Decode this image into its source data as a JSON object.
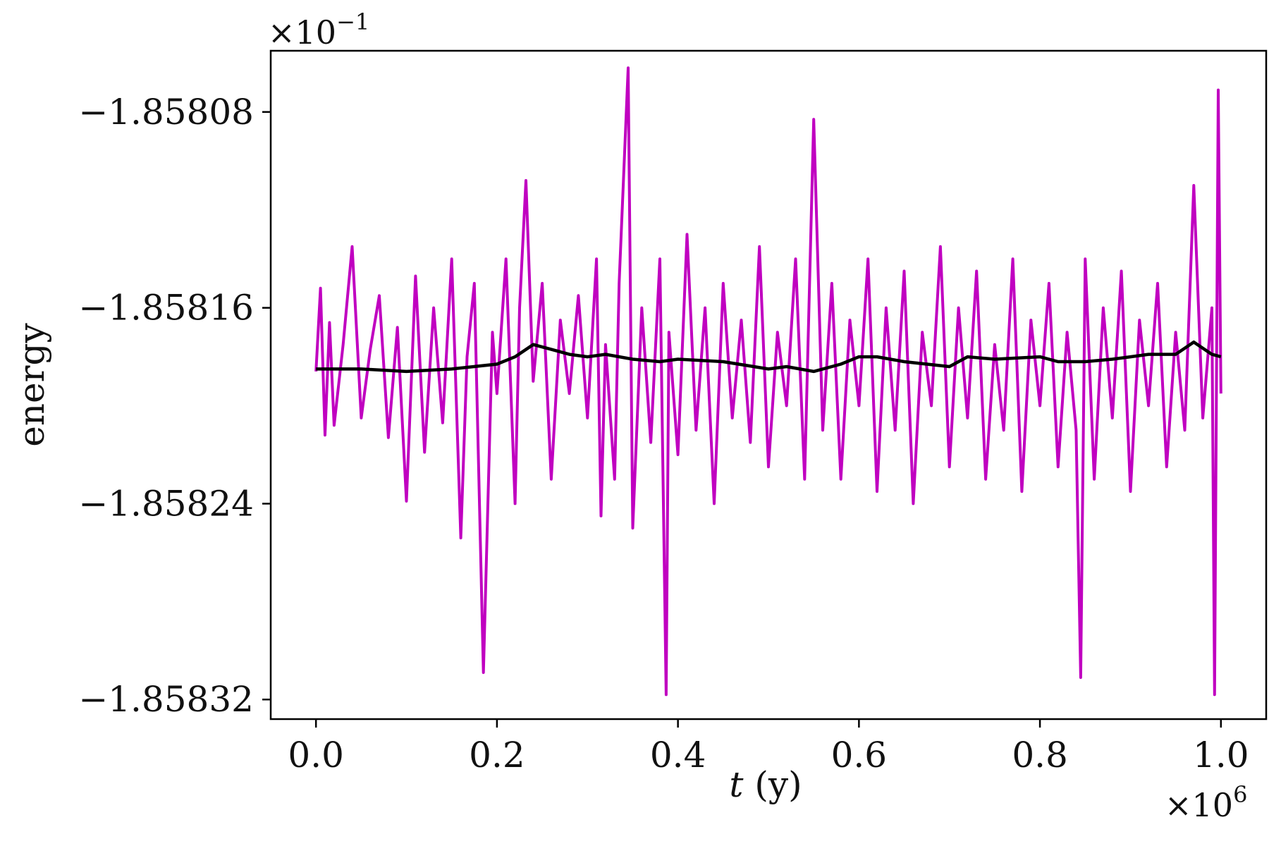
{
  "chart_data": {
    "type": "line",
    "title": "",
    "xlabel": "t (y)",
    "xlabel_italic_part": "t",
    "xlabel_unit_part": " (y)",
    "ylabel": "energy",
    "x_offset_label": "×10",
    "x_offset_exp": "6",
    "y_offset_label": "×10",
    "y_offset_exp": "−1",
    "xlim": [
      -0.05,
      1.05
    ],
    "ylim": [
      -1.858328,
      -1.858055
    ],
    "x_ticks": [
      0.0,
      0.2,
      0.4,
      0.6,
      0.8,
      1.0
    ],
    "x_tick_labels": [
      "0.0",
      "0.2",
      "0.4",
      "0.6",
      "0.8",
      "1.0"
    ],
    "y_ticks": [
      -1.85808,
      -1.85816,
      -1.85824,
      -1.85832
    ],
    "y_tick_labels": [
      "−1.85808",
      "−1.85816",
      "−1.85824",
      "−1.85832"
    ],
    "grid": false,
    "legend": "none",
    "series": [
      {
        "color": "#c000c0",
        "x": [
          0.0,
          0.005,
          0.01,
          0.015,
          0.02,
          0.03,
          0.04,
          0.05,
          0.06,
          0.07,
          0.08,
          0.09,
          0.1,
          0.11,
          0.12,
          0.13,
          0.14,
          0.15,
          0.16,
          0.167,
          0.175,
          0.185,
          0.195,
          0.2,
          0.21,
          0.22,
          0.225,
          0.232,
          0.24,
          0.25,
          0.26,
          0.27,
          0.28,
          0.29,
          0.3,
          0.31,
          0.315,
          0.32,
          0.33,
          0.335,
          0.345,
          0.35,
          0.36,
          0.37,
          0.38,
          0.387,
          0.39,
          0.4,
          0.41,
          0.42,
          0.43,
          0.44,
          0.45,
          0.46,
          0.47,
          0.48,
          0.49,
          0.5,
          0.51,
          0.52,
          0.53,
          0.54,
          0.55,
          0.56,
          0.57,
          0.58,
          0.59,
          0.6,
          0.61,
          0.62,
          0.63,
          0.64,
          0.65,
          0.66,
          0.67,
          0.68,
          0.69,
          0.7,
          0.71,
          0.72,
          0.73,
          0.74,
          0.75,
          0.76,
          0.77,
          0.78,
          0.79,
          0.8,
          0.81,
          0.82,
          0.83,
          0.84,
          0.845,
          0.85,
          0.86,
          0.87,
          0.88,
          0.89,
          0.9,
          0.91,
          0.92,
          0.93,
          0.94,
          0.95,
          0.96,
          0.97,
          0.98,
          0.99,
          0.993,
          0.997,
          1.0
        ],
        "y": [
          -1.858186,
          -1.858152,
          -1.858212,
          -1.858166,
          -1.858208,
          -1.858175,
          -1.858135,
          -1.858205,
          -1.858177,
          -1.858155,
          -1.858213,
          -1.858168,
          -1.858239,
          -1.858147,
          -1.858219,
          -1.85816,
          -1.858207,
          -1.85814,
          -1.858254,
          -1.85818,
          -1.85815,
          -1.858309,
          -1.85817,
          -1.858195,
          -1.85814,
          -1.85824,
          -1.85816,
          -1.858108,
          -1.85819,
          -1.85815,
          -1.85823,
          -1.858165,
          -1.858195,
          -1.858155,
          -1.858205,
          -1.85814,
          -1.858245,
          -1.858175,
          -1.85823,
          -1.85815,
          -1.858062,
          -1.85825,
          -1.85816,
          -1.858215,
          -1.85814,
          -1.858318,
          -1.85817,
          -1.85822,
          -1.85813,
          -1.85821,
          -1.85816,
          -1.85824,
          -1.85815,
          -1.858205,
          -1.858165,
          -1.858215,
          -1.858135,
          -1.858225,
          -1.85817,
          -1.8582,
          -1.85814,
          -1.85823,
          -1.858083,
          -1.85821,
          -1.85815,
          -1.85823,
          -1.858165,
          -1.8582,
          -1.85814,
          -1.858235,
          -1.85816,
          -1.85821,
          -1.858145,
          -1.85824,
          -1.85817,
          -1.8582,
          -1.858135,
          -1.858225,
          -1.85816,
          -1.858205,
          -1.858145,
          -1.85823,
          -1.858175,
          -1.85821,
          -1.85814,
          -1.858235,
          -1.858165,
          -1.8582,
          -1.85815,
          -1.858225,
          -1.85817,
          -1.85821,
          -1.858311,
          -1.85814,
          -1.85823,
          -1.85816,
          -1.858205,
          -1.858145,
          -1.858235,
          -1.858165,
          -1.8582,
          -1.85815,
          -1.858225,
          -1.85817,
          -1.85821,
          -1.85811,
          -1.858205,
          -1.85816,
          -1.858318,
          -1.858071,
          -1.858195
        ]
      },
      {
        "color": "#000000",
        "x": [
          0.0,
          0.05,
          0.1,
          0.15,
          0.2,
          0.22,
          0.24,
          0.26,
          0.28,
          0.3,
          0.32,
          0.35,
          0.38,
          0.4,
          0.45,
          0.5,
          0.52,
          0.55,
          0.58,
          0.6,
          0.62,
          0.65,
          0.7,
          0.72,
          0.75,
          0.8,
          0.82,
          0.85,
          0.88,
          0.9,
          0.92,
          0.95,
          0.97,
          0.99,
          1.0
        ],
        "y": [
          -1.858185,
          -1.858185,
          -1.858186,
          -1.858185,
          -1.858183,
          -1.85818,
          -1.858175,
          -1.858177,
          -1.858179,
          -1.85818,
          -1.858179,
          -1.858181,
          -1.858182,
          -1.858181,
          -1.858182,
          -1.858185,
          -1.858184,
          -1.858186,
          -1.858183,
          -1.85818,
          -1.85818,
          -1.858182,
          -1.858184,
          -1.85818,
          -1.858181,
          -1.85818,
          -1.858182,
          -1.858182,
          -1.858181,
          -1.85818,
          -1.858179,
          -1.858179,
          -1.858174,
          -1.858179,
          -1.85818
        ]
      }
    ]
  }
}
